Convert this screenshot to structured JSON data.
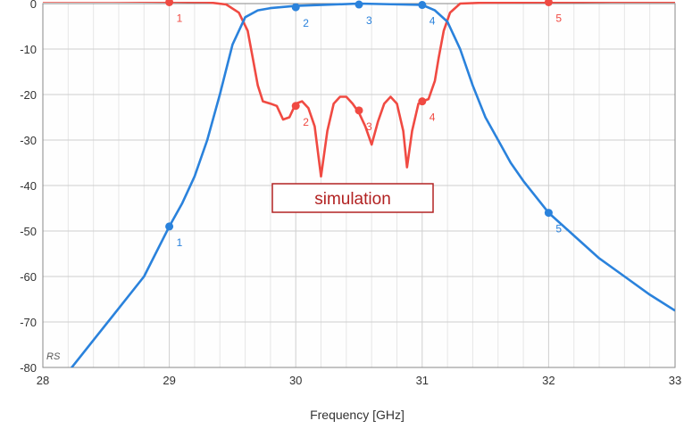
{
  "chart_data": {
    "type": "line",
    "xlabel": "Frequency [GHz]",
    "ylabel": "",
    "xlim": [
      28,
      33
    ],
    "ylim": [
      -80,
      0
    ],
    "x_ticks": [
      "28",
      "29",
      "30",
      "31",
      "32",
      "33"
    ],
    "y_ticks": [
      "0",
      "-10",
      "-20",
      "-30",
      "-40",
      "-50",
      "-60",
      "-70",
      "-80"
    ],
    "grid": true,
    "corner_label": "RS",
    "annotation": "simulation",
    "series": [
      {
        "color": "#f04a42",
        "points": [
          [
            28.0,
            0.5
          ],
          [
            28.5,
            0.5
          ],
          [
            29.0,
            0.4
          ],
          [
            29.3,
            0.3
          ],
          [
            29.45,
            -0.2
          ],
          [
            29.55,
            -2
          ],
          [
            29.62,
            -6
          ],
          [
            29.66,
            -12
          ],
          [
            29.7,
            -18
          ],
          [
            29.74,
            -21.5
          ],
          [
            29.8,
            -22
          ],
          [
            29.85,
            -22.5
          ],
          [
            29.9,
            -25.5
          ],
          [
            29.95,
            -25
          ],
          [
            30.0,
            -22
          ],
          [
            30.05,
            -21.5
          ],
          [
            30.1,
            -23
          ],
          [
            30.15,
            -27
          ],
          [
            30.2,
            -38
          ],
          [
            30.25,
            -28
          ],
          [
            30.3,
            -22
          ],
          [
            30.35,
            -20.5
          ],
          [
            30.4,
            -20.5
          ],
          [
            30.45,
            -22
          ],
          [
            30.5,
            -24
          ],
          [
            30.55,
            -27
          ],
          [
            30.6,
            -31
          ],
          [
            30.65,
            -26
          ],
          [
            30.7,
            -22
          ],
          [
            30.75,
            -20.5
          ],
          [
            30.8,
            -22
          ],
          [
            30.85,
            -28
          ],
          [
            30.88,
            -36
          ],
          [
            30.92,
            -28
          ],
          [
            30.97,
            -22
          ],
          [
            31.0,
            -21.5
          ],
          [
            31.05,
            -21
          ],
          [
            31.1,
            -17
          ],
          [
            31.13,
            -12
          ],
          [
            31.17,
            -6
          ],
          [
            31.22,
            -2
          ],
          [
            31.3,
            0
          ],
          [
            31.5,
            0.2
          ],
          [
            32.0,
            0.3
          ],
          [
            32.5,
            0.4
          ],
          [
            33.0,
            0.4
          ]
        ],
        "markers": [
          {
            "x": 29.0,
            "y": 0.3,
            "label": "1"
          },
          {
            "x": 30.0,
            "y": -22.5,
            "label": "2"
          },
          {
            "x": 30.5,
            "y": -23.5,
            "label": "3"
          },
          {
            "x": 31.0,
            "y": -21.5,
            "label": "4"
          },
          {
            "x": 32.0,
            "y": 0.3,
            "label": "5"
          }
        ]
      },
      {
        "color": "#2a82dc",
        "points": [
          [
            28.2,
            -81
          ],
          [
            28.4,
            -74
          ],
          [
            28.6,
            -67
          ],
          [
            28.8,
            -60
          ],
          [
            29.0,
            -49
          ],
          [
            29.1,
            -44
          ],
          [
            29.2,
            -38
          ],
          [
            29.3,
            -30
          ],
          [
            29.4,
            -20
          ],
          [
            29.5,
            -9
          ],
          [
            29.6,
            -3
          ],
          [
            29.7,
            -1.5
          ],
          [
            29.8,
            -1
          ],
          [
            30.0,
            -0.5
          ],
          [
            30.5,
            0
          ],
          [
            31.0,
            -0.3
          ],
          [
            31.1,
            -1.5
          ],
          [
            31.2,
            -4
          ],
          [
            31.3,
            -10
          ],
          [
            31.4,
            -18
          ],
          [
            31.5,
            -25
          ],
          [
            31.6,
            -30
          ],
          [
            31.7,
            -35
          ],
          [
            31.8,
            -39
          ],
          [
            32.0,
            -46
          ],
          [
            32.2,
            -51
          ],
          [
            32.4,
            -56
          ],
          [
            32.6,
            -60
          ],
          [
            32.8,
            -64
          ],
          [
            33.0,
            -67.5
          ]
        ],
        "markers": [
          {
            "x": 29.0,
            "y": -49,
            "label": "1"
          },
          {
            "x": 30.0,
            "y": -0.8,
            "label": "2"
          },
          {
            "x": 30.5,
            "y": -0.2,
            "label": "3"
          },
          {
            "x": 31.0,
            "y": -0.3,
            "label": "4"
          },
          {
            "x": 32.0,
            "y": -46,
            "label": "5"
          }
        ]
      }
    ]
  }
}
